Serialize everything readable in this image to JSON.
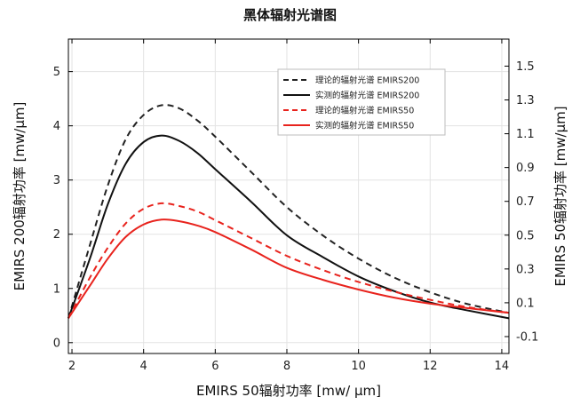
{
  "chart_data": {
    "type": "line",
    "title": "黑体辐射光谱图",
    "xlabel": "EMIRS 50辐射功率 [mw/ µm]",
    "ylabel_left": "EMIRS 200辐射功率 [mw/µm]",
    "ylabel_right": "EMIRS 50辐射功率 [mw/µm]",
    "xlim": [
      1.9,
      14.2
    ],
    "ylim_left": [
      -0.2,
      5.6
    ],
    "ylim_right": [
      -0.2,
      1.66
    ],
    "x_ticks": [
      "2",
      "4",
      "6",
      "8",
      "10",
      "12",
      "14"
    ],
    "y_left_ticks": [
      "0",
      "1",
      "2",
      "3",
      "4",
      "5"
    ],
    "y_right_ticks": [
      "-0.1",
      "0.1",
      "0.3",
      "0.5",
      "0.7",
      "0.9",
      "1.1",
      "1.3",
      "1.5"
    ],
    "grid": true,
    "legend_position": "top-right",
    "series": [
      {
        "name": "理论的辐射光谱 EMIRS200",
        "axis": "left",
        "color": "#222222",
        "dash": "dashed",
        "x": [
          1.9,
          2.5,
          3.0,
          3.5,
          4.0,
          4.5,
          5.0,
          5.5,
          6.0,
          7.0,
          8.0,
          9.0,
          10.0,
          11.0,
          12.0,
          13.0,
          14.2
        ],
        "y": [
          0.45,
          1.8,
          2.9,
          3.75,
          4.2,
          4.38,
          4.32,
          4.1,
          3.8,
          3.15,
          2.5,
          1.98,
          1.55,
          1.2,
          0.93,
          0.72,
          0.55
        ]
      },
      {
        "name": "实测的辐射光谱 EMIRS200",
        "axis": "left",
        "color": "#111111",
        "dash": "solid",
        "x": [
          1.9,
          2.5,
          3.0,
          3.5,
          4.0,
          4.5,
          5.0,
          5.5,
          6.0,
          7.0,
          8.0,
          9.0,
          10.0,
          11.0,
          12.0,
          13.0,
          14.2
        ],
        "y": [
          0.45,
          1.55,
          2.55,
          3.3,
          3.7,
          3.82,
          3.72,
          3.5,
          3.2,
          2.6,
          1.98,
          1.58,
          1.22,
          0.95,
          0.74,
          0.6,
          0.45
        ]
      },
      {
        "name": "理论的辐射光谱 EMIRS50",
        "axis": "left",
        "color": "#e8231d",
        "dash": "dashed",
        "x": [
          1.9,
          2.5,
          3.0,
          3.5,
          4.0,
          4.5,
          5.0,
          5.5,
          6.0,
          7.0,
          8.0,
          9.0,
          10.0,
          11.0,
          12.0,
          13.0,
          14.2
        ],
        "y": [
          0.45,
          1.2,
          1.75,
          2.2,
          2.47,
          2.57,
          2.52,
          2.42,
          2.26,
          1.93,
          1.6,
          1.34,
          1.12,
          0.94,
          0.79,
          0.66,
          0.55
        ]
      },
      {
        "name": "实测的辐射光谱 EMIRS50",
        "axis": "left",
        "color": "#e8231d",
        "dash": "solid",
        "x": [
          1.9,
          2.5,
          3.0,
          3.5,
          4.0,
          4.5,
          5.0,
          5.5,
          6.0,
          7.0,
          8.0,
          9.0,
          10.0,
          11.0,
          12.0,
          13.0,
          14.2
        ],
        "y": [
          0.45,
          1.05,
          1.55,
          1.95,
          2.18,
          2.27,
          2.24,
          2.16,
          2.04,
          1.72,
          1.38,
          1.16,
          0.98,
          0.83,
          0.72,
          0.64,
          0.55
        ]
      }
    ]
  }
}
